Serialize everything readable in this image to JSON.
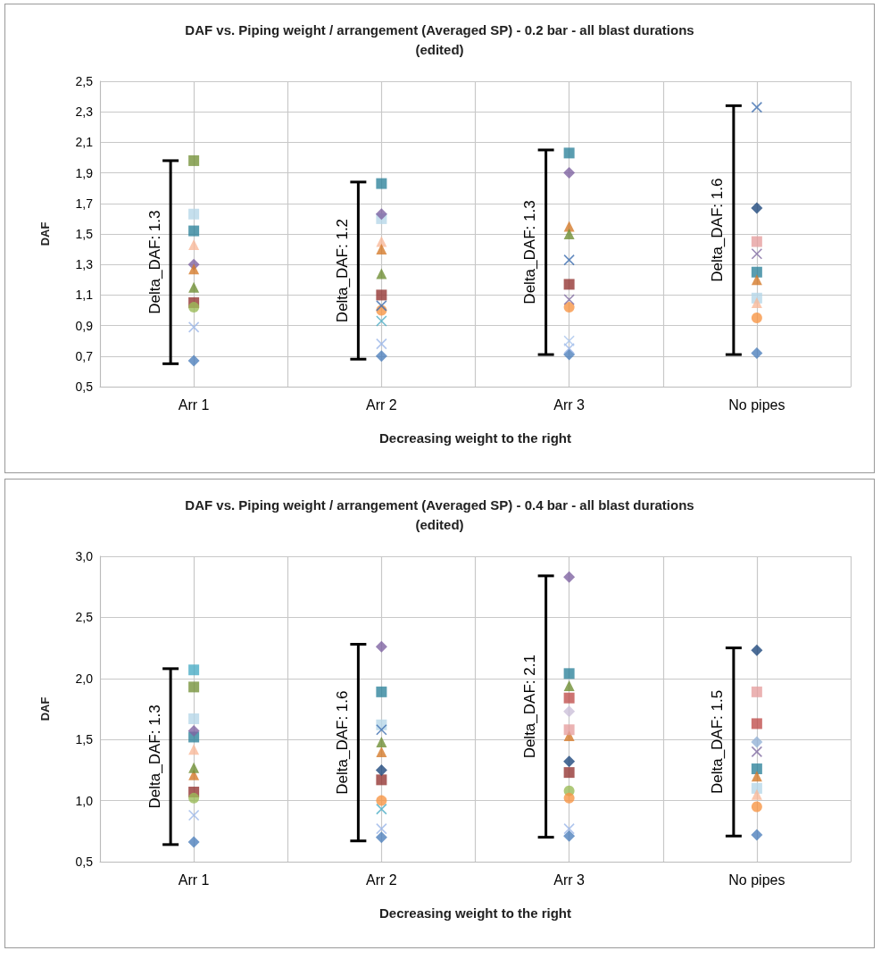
{
  "chart_data": [
    {
      "type": "scatter",
      "title": "DAF vs. Piping weight / arrangement (Averaged SP) - 0.2 bar - all blast durations\n(edited)",
      "xlabel": "Decreasing weight to the right",
      "ylabel": "DAF",
      "categories": [
        "Arr 1",
        "Arr 2",
        "Arr 3",
        "No pipes"
      ],
      "ylim": [
        0.5,
        2.5
      ],
      "yticks": [
        {
          "value": 0.5,
          "label": "0,5"
        },
        {
          "value": 0.7,
          "label": "0,7"
        },
        {
          "value": 0.9,
          "label": "0,9"
        },
        {
          "value": 1.1,
          "label": "1,1"
        },
        {
          "value": 1.3,
          "label": "1,3"
        },
        {
          "value": 1.5,
          "label": "1,5"
        },
        {
          "value": 1.7,
          "label": "1,7"
        },
        {
          "value": 1.9,
          "label": "1,9"
        },
        {
          "value": 2.1,
          "label": "2,1"
        },
        {
          "value": 2.3,
          "label": "2,3"
        },
        {
          "value": 2.5,
          "label": "2,5"
        }
      ],
      "grid": true,
      "series": [
        {
          "color": "#4f81bd",
          "marker": "diamond",
          "values": [
            0.67,
            0.7,
            0.71,
            0.72
          ]
        },
        {
          "color": "#9bb7e8",
          "marker": "cross",
          "values": [
            0.89,
            0.78,
            0.75,
            null
          ]
        },
        {
          "color": "#77933c",
          "marker": "square",
          "values": [
            1.98,
            null,
            null,
            null
          ]
        },
        {
          "color": "#b7d7e8",
          "marker": "square",
          "values": [
            1.63,
            1.6,
            null,
            1.08
          ]
        },
        {
          "color": "#31859c",
          "marker": "square",
          "values": [
            1.52,
            1.83,
            2.03,
            1.25
          ]
        },
        {
          "color": "#f9b99a",
          "marker": "triangle",
          "values": [
            1.43,
            1.45,
            null,
            1.05
          ]
        },
        {
          "color": "#8064a2",
          "marker": "diamond",
          "values": [
            1.3,
            1.63,
            1.9,
            null
          ]
        },
        {
          "color": "#d47b2a",
          "marker": "triangle",
          "values": [
            1.27,
            1.4,
            1.55,
            1.2
          ]
        },
        {
          "color": "#6f8f35",
          "marker": "triangle",
          "values": [
            1.15,
            1.24,
            1.5,
            null
          ]
        },
        {
          "color": "#953735",
          "marker": "square",
          "values": [
            1.05,
            1.1,
            1.17,
            null
          ]
        },
        {
          "color": "#9bbb59",
          "marker": "circle",
          "values": [
            1.02,
            null,
            null,
            null
          ]
        },
        {
          "color": "#f79646",
          "marker": "circle",
          "values": [
            null,
            1.0,
            1.02,
            0.95
          ]
        },
        {
          "color": "#3f6fb0",
          "marker": "cross",
          "values": [
            null,
            1.03,
            1.33,
            2.33
          ]
        },
        {
          "color": "#1f497d",
          "marker": "diamond",
          "values": [
            null,
            null,
            null,
            1.67
          ]
        },
        {
          "color": "#e6a0a0",
          "marker": "square",
          "values": [
            null,
            null,
            null,
            1.45
          ]
        },
        {
          "color": "#7f6aa0",
          "marker": "cross",
          "values": [
            null,
            null,
            1.07,
            1.37
          ]
        },
        {
          "color": "#4bacc6",
          "marker": "cross",
          "values": [
            null,
            0.93,
            null,
            null
          ]
        },
        {
          "color": "#a9c4ec",
          "marker": "cross",
          "values": [
            null,
            null,
            0.8,
            null
          ]
        },
        {
          "type": "bar",
          "color": "#000000",
          "base": [
            0.65,
            0.68,
            0.71,
            0.71
          ],
          "values": [
            1.33,
            1.16,
            1.34,
            1.63
          ]
        }
      ],
      "annotations": [
        "Delta_DAF: 1.3",
        "Delta_DAF: 1.2",
        "Delta_DAF: 1.3",
        "Delta_DAF: 1.6"
      ]
    },
    {
      "type": "scatter",
      "title": "DAF vs. Piping weight / arrangement (Averaged SP) - 0.4 bar - all blast durations\n(edited)",
      "xlabel": "Decreasing weight to the right",
      "ylabel": "DAF",
      "categories": [
        "Arr 1",
        "Arr 2",
        "Arr 3",
        "No pipes"
      ],
      "ylim": [
        0.5,
        3.0
      ],
      "yticks": [
        {
          "value": 0.5,
          "label": "0,5"
        },
        {
          "value": 1.0,
          "label": "1,0"
        },
        {
          "value": 1.5,
          "label": "1,5"
        },
        {
          "value": 2.0,
          "label": "2,0"
        },
        {
          "value": 2.5,
          "label": "2,5"
        },
        {
          "value": 3.0,
          "label": "3,0"
        }
      ],
      "grid": true,
      "series": [
        {
          "color": "#4f81bd",
          "marker": "diamond",
          "values": [
            0.66,
            0.7,
            0.71,
            0.72
          ]
        },
        {
          "color": "#9bb7e8",
          "marker": "cross",
          "values": [
            0.88,
            0.77,
            0.77,
            null
          ]
        },
        {
          "color": "#77933c",
          "marker": "square",
          "values": [
            1.93,
            null,
            null,
            null
          ]
        },
        {
          "color": "#4bacc6",
          "marker": "square",
          "values": [
            2.07,
            null,
            null,
            null
          ]
        },
        {
          "color": "#b7d7e8",
          "marker": "square",
          "values": [
            1.67,
            1.62,
            null,
            1.1
          ]
        },
        {
          "color": "#31859c",
          "marker": "square",
          "values": [
            1.52,
            1.89,
            2.04,
            1.26
          ]
        },
        {
          "color": "#f9b99a",
          "marker": "triangle",
          "values": [
            1.42,
            null,
            null,
            1.05
          ]
        },
        {
          "color": "#8064a2",
          "marker": "diamond",
          "values": [
            1.57,
            2.26,
            2.83,
            null
          ]
        },
        {
          "color": "#d47b2a",
          "marker": "triangle",
          "values": [
            1.21,
            1.4,
            1.53,
            1.2
          ]
        },
        {
          "color": "#6f8f35",
          "marker": "triangle",
          "values": [
            1.27,
            1.48,
            1.94,
            null
          ]
        },
        {
          "color": "#953735",
          "marker": "square",
          "values": [
            1.07,
            1.17,
            1.23,
            null
          ]
        },
        {
          "color": "#9bbb59",
          "marker": "circle",
          "values": [
            1.02,
            null,
            1.08,
            null
          ]
        },
        {
          "color": "#f79646",
          "marker": "circle",
          "values": [
            null,
            1.0,
            1.02,
            0.95
          ]
        },
        {
          "color": "#3f6fb0",
          "marker": "cross",
          "values": [
            null,
            1.58,
            null,
            null
          ]
        },
        {
          "color": "#1f497d",
          "marker": "diamond",
          "values": [
            null,
            1.25,
            1.32,
            2.23
          ]
        },
        {
          "color": "#e6a0a0",
          "marker": "square",
          "values": [
            null,
            null,
            1.58,
            1.89
          ]
        },
        {
          "color": "#7f6aa0",
          "marker": "cross",
          "values": [
            null,
            null,
            null,
            1.4
          ]
        },
        {
          "color": "#4bacc6",
          "marker": "cross",
          "values": [
            null,
            0.93,
            null,
            null
          ]
        },
        {
          "color": "#ccc1da",
          "marker": "diamond",
          "values": [
            null,
            null,
            1.73,
            null
          ]
        },
        {
          "color": "#c0504d",
          "marker": "square",
          "values": [
            null,
            null,
            1.84,
            1.63
          ]
        },
        {
          "color": "#95b3d7",
          "marker": "diamond",
          "values": [
            null,
            null,
            null,
            1.48
          ]
        },
        {
          "type": "bar",
          "color": "#000000",
          "base": [
            0.64,
            0.67,
            0.7,
            0.71
          ],
          "values": [
            1.44,
            1.61,
            2.14,
            1.54
          ]
        }
      ],
      "annotations": [
        "Delta_DAF: 1.3",
        "Delta_DAF: 1.6",
        "Delta_DAF: 2.1",
        "Delta_DAF: 1.5"
      ]
    }
  ]
}
